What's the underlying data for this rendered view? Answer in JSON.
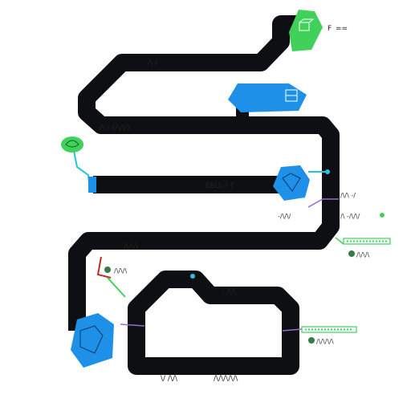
{
  "colors": {
    "track": "#0d0f12",
    "blue": "#1e90e8",
    "green": "#3fd15a",
    "cyan": "#27c3e0",
    "red": "#c42a1f",
    "purple": "#9a6ad0",
    "text": "#222222"
  },
  "icons": {
    "top_green_node": "cube-icon",
    "top_blue_node": "box-icon",
    "left_green_node": "leaf-icon",
    "mid_blue_node": "cube-icon",
    "bottom_blue_node": "cube-icon"
  },
  "labels": {
    "top_right_a": "F",
    "top_right_b": "==",
    "upper_track": "/\\ /",
    "second_track": "/\\ r (/\\/\\/)",
    "mid_track": "EELL-/ T",
    "right_1": "/\\/\\ -/",
    "right_2": "-/\\/\\/",
    "right_3": "/\\ -/\\/\\/",
    "right_4": "/\\/\\/\\",
    "lower_left": "/\\/\\/)",
    "lower_left_b": "/\\/\\/\\",
    "loop_top": "- /\\/\\",
    "bottom_a": "\\/ /\\/\\",
    "bottom_b": "/\\/\\/\\/\\/\\",
    "right_5": "/\\/\\/\\/\\"
  }
}
